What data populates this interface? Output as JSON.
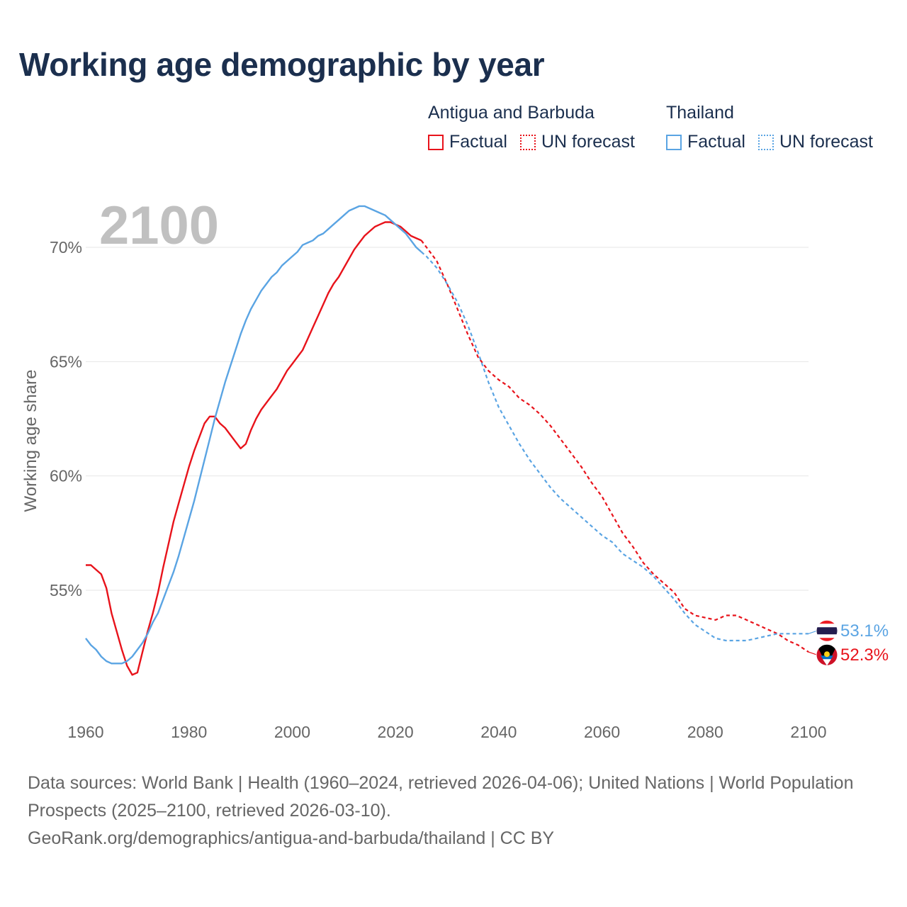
{
  "title": "Working age demographic by year",
  "legend": {
    "groups": [
      {
        "name": "Antigua and Barbuda",
        "factual": "Factual",
        "forecast": "UN forecast",
        "color": "#e8131b"
      },
      {
        "name": "Thailand",
        "factual": "Factual",
        "forecast": "UN forecast",
        "color": "#5aa4e3"
      }
    ]
  },
  "footer": {
    "line1": "Data sources: World Bank | Health (1960–2024, retrieved 2026-04-06); United Nations | World Population Prospects (2025–2100, retrieved 2026-03-10).",
    "line2": "GeoRank.org/demographics/antigua-and-barbuda/thailand | CC BY"
  },
  "chart_data": {
    "type": "line",
    "title": "Working age demographic by year",
    "year_display": "2100",
    "xlabel": "",
    "ylabel": "Working age share",
    "xlim": [
      1960,
      2100
    ],
    "ylim": [
      50.0,
      72.5
    ],
    "x_ticks": [
      1960,
      1980,
      2000,
      2020,
      2040,
      2060,
      2080,
      2100
    ],
    "y_ticks": [
      55,
      60,
      65,
      70
    ],
    "y_tick_labels": [
      "55%",
      "60%",
      "65%",
      "70%"
    ],
    "grid": true,
    "factual_end_year": 2024,
    "series": [
      {
        "name": "Antigua and Barbuda",
        "color": "#e8131b",
        "end_label": "52.3%",
        "flag": "antigua-and-barbuda-flag",
        "points": [
          [
            1960,
            56.1
          ],
          [
            1961,
            56.1
          ],
          [
            1962,
            55.9
          ],
          [
            1963,
            55.7
          ],
          [
            1964,
            55.1
          ],
          [
            1965,
            54.0
          ],
          [
            1966,
            53.2
          ],
          [
            1967,
            52.4
          ],
          [
            1968,
            51.7
          ],
          [
            1969,
            51.3
          ],
          [
            1970,
            51.4
          ],
          [
            1971,
            52.3
          ],
          [
            1972,
            53.2
          ],
          [
            1973,
            54.0
          ],
          [
            1974,
            54.9
          ],
          [
            1975,
            56.0
          ],
          [
            1976,
            57.0
          ],
          [
            1977,
            58.0
          ],
          [
            1978,
            58.8
          ],
          [
            1979,
            59.6
          ],
          [
            1980,
            60.4
          ],
          [
            1981,
            61.1
          ],
          [
            1982,
            61.7
          ],
          [
            1983,
            62.3
          ],
          [
            1984,
            62.6
          ],
          [
            1985,
            62.6
          ],
          [
            1986,
            62.3
          ],
          [
            1987,
            62.1
          ],
          [
            1988,
            61.8
          ],
          [
            1989,
            61.5
          ],
          [
            1990,
            61.2
          ],
          [
            1991,
            61.4
          ],
          [
            1992,
            62.0
          ],
          [
            1993,
            62.5
          ],
          [
            1994,
            62.9
          ],
          [
            1995,
            63.2
          ],
          [
            1996,
            63.5
          ],
          [
            1997,
            63.8
          ],
          [
            1998,
            64.2
          ],
          [
            1999,
            64.6
          ],
          [
            2000,
            64.9
          ],
          [
            2001,
            65.2
          ],
          [
            2002,
            65.5
          ],
          [
            2003,
            66.0
          ],
          [
            2004,
            66.5
          ],
          [
            2005,
            67.0
          ],
          [
            2006,
            67.5
          ],
          [
            2007,
            68.0
          ],
          [
            2008,
            68.4
          ],
          [
            2009,
            68.7
          ],
          [
            2010,
            69.1
          ],
          [
            2011,
            69.5
          ],
          [
            2012,
            69.9
          ],
          [
            2013,
            70.2
          ],
          [
            2014,
            70.5
          ],
          [
            2015,
            70.7
          ],
          [
            2016,
            70.9
          ],
          [
            2017,
            71.0
          ],
          [
            2018,
            71.1
          ],
          [
            2019,
            71.1
          ],
          [
            2020,
            71.0
          ],
          [
            2021,
            70.9
          ],
          [
            2022,
            70.7
          ],
          [
            2023,
            70.5
          ],
          [
            2024,
            70.4
          ],
          [
            2025,
            70.3
          ],
          [
            2026,
            70.0
          ],
          [
            2028,
            69.4
          ],
          [
            2030,
            68.4
          ],
          [
            2032,
            67.3
          ],
          [
            2034,
            66.2
          ],
          [
            2036,
            65.2
          ],
          [
            2038,
            64.6
          ],
          [
            2040,
            64.2
          ],
          [
            2042,
            63.9
          ],
          [
            2044,
            63.4
          ],
          [
            2046,
            63.1
          ],
          [
            2048,
            62.7
          ],
          [
            2050,
            62.2
          ],
          [
            2052,
            61.6
          ],
          [
            2054,
            61.0
          ],
          [
            2056,
            60.4
          ],
          [
            2058,
            59.7
          ],
          [
            2060,
            59.1
          ],
          [
            2062,
            58.3
          ],
          [
            2064,
            57.5
          ],
          [
            2066,
            56.9
          ],
          [
            2068,
            56.2
          ],
          [
            2070,
            55.7
          ],
          [
            2072,
            55.3
          ],
          [
            2074,
            54.9
          ],
          [
            2076,
            54.2
          ],
          [
            2078,
            53.9
          ],
          [
            2080,
            53.8
          ],
          [
            2082,
            53.7
          ],
          [
            2084,
            53.9
          ],
          [
            2086,
            53.9
          ],
          [
            2088,
            53.7
          ],
          [
            2090,
            53.5
          ],
          [
            2092,
            53.3
          ],
          [
            2094,
            53.1
          ],
          [
            2096,
            52.8
          ],
          [
            2098,
            52.6
          ],
          [
            2100,
            52.3
          ]
        ]
      },
      {
        "name": "Thailand",
        "color": "#5aa4e3",
        "end_label": "53.1%",
        "flag": "thailand-flag",
        "points": [
          [
            1960,
            52.9
          ],
          [
            1961,
            52.6
          ],
          [
            1962,
            52.4
          ],
          [
            1963,
            52.1
          ],
          [
            1964,
            51.9
          ],
          [
            1965,
            51.8
          ],
          [
            1966,
            51.8
          ],
          [
            1967,
            51.8
          ],
          [
            1968,
            51.9
          ],
          [
            1969,
            52.1
          ],
          [
            1970,
            52.4
          ],
          [
            1971,
            52.7
          ],
          [
            1972,
            53.1
          ],
          [
            1973,
            53.6
          ],
          [
            1974,
            54.0
          ],
          [
            1975,
            54.6
          ],
          [
            1976,
            55.2
          ],
          [
            1977,
            55.8
          ],
          [
            1978,
            56.5
          ],
          [
            1979,
            57.3
          ],
          [
            1980,
            58.1
          ],
          [
            1981,
            58.9
          ],
          [
            1982,
            59.8
          ],
          [
            1983,
            60.7
          ],
          [
            1984,
            61.6
          ],
          [
            1985,
            62.5
          ],
          [
            1986,
            63.3
          ],
          [
            1987,
            64.1
          ],
          [
            1988,
            64.8
          ],
          [
            1989,
            65.5
          ],
          [
            1990,
            66.2
          ],
          [
            1991,
            66.8
          ],
          [
            1992,
            67.3
          ],
          [
            1993,
            67.7
          ],
          [
            1994,
            68.1
          ],
          [
            1995,
            68.4
          ],
          [
            1996,
            68.7
          ],
          [
            1997,
            68.9
          ],
          [
            1998,
            69.2
          ],
          [
            1999,
            69.4
          ],
          [
            2000,
            69.6
          ],
          [
            2001,
            69.8
          ],
          [
            2002,
            70.1
          ],
          [
            2003,
            70.2
          ],
          [
            2004,
            70.3
          ],
          [
            2005,
            70.5
          ],
          [
            2006,
            70.6
          ],
          [
            2007,
            70.8
          ],
          [
            2008,
            71.0
          ],
          [
            2009,
            71.2
          ],
          [
            2010,
            71.4
          ],
          [
            2011,
            71.6
          ],
          [
            2012,
            71.7
          ],
          [
            2013,
            71.8
          ],
          [
            2014,
            71.8
          ],
          [
            2015,
            71.7
          ],
          [
            2016,
            71.6
          ],
          [
            2017,
            71.5
          ],
          [
            2018,
            71.4
          ],
          [
            2019,
            71.2
          ],
          [
            2020,
            71.0
          ],
          [
            2021,
            70.8
          ],
          [
            2022,
            70.6
          ],
          [
            2023,
            70.3
          ],
          [
            2024,
            70.0
          ],
          [
            2025,
            69.8
          ],
          [
            2026,
            69.6
          ],
          [
            2028,
            69.1
          ],
          [
            2030,
            68.4
          ],
          [
            2032,
            67.6
          ],
          [
            2034,
            66.6
          ],
          [
            2036,
            65.4
          ],
          [
            2038,
            64.1
          ],
          [
            2040,
            63.0
          ],
          [
            2042,
            62.2
          ],
          [
            2044,
            61.4
          ],
          [
            2046,
            60.7
          ],
          [
            2048,
            60.1
          ],
          [
            2050,
            59.5
          ],
          [
            2052,
            59.0
          ],
          [
            2054,
            58.6
          ],
          [
            2056,
            58.2
          ],
          [
            2058,
            57.8
          ],
          [
            2060,
            57.4
          ],
          [
            2062,
            57.1
          ],
          [
            2064,
            56.6
          ],
          [
            2066,
            56.3
          ],
          [
            2068,
            56.0
          ],
          [
            2070,
            55.6
          ],
          [
            2072,
            55.1
          ],
          [
            2074,
            54.6
          ],
          [
            2076,
            54.0
          ],
          [
            2078,
            53.5
          ],
          [
            2080,
            53.2
          ],
          [
            2082,
            52.9
          ],
          [
            2084,
            52.8
          ],
          [
            2086,
            52.8
          ],
          [
            2088,
            52.8
          ],
          [
            2090,
            52.9
          ],
          [
            2092,
            53.0
          ],
          [
            2094,
            53.1
          ],
          [
            2096,
            53.1
          ],
          [
            2098,
            53.1
          ],
          [
            2100,
            53.1
          ]
        ]
      }
    ]
  }
}
